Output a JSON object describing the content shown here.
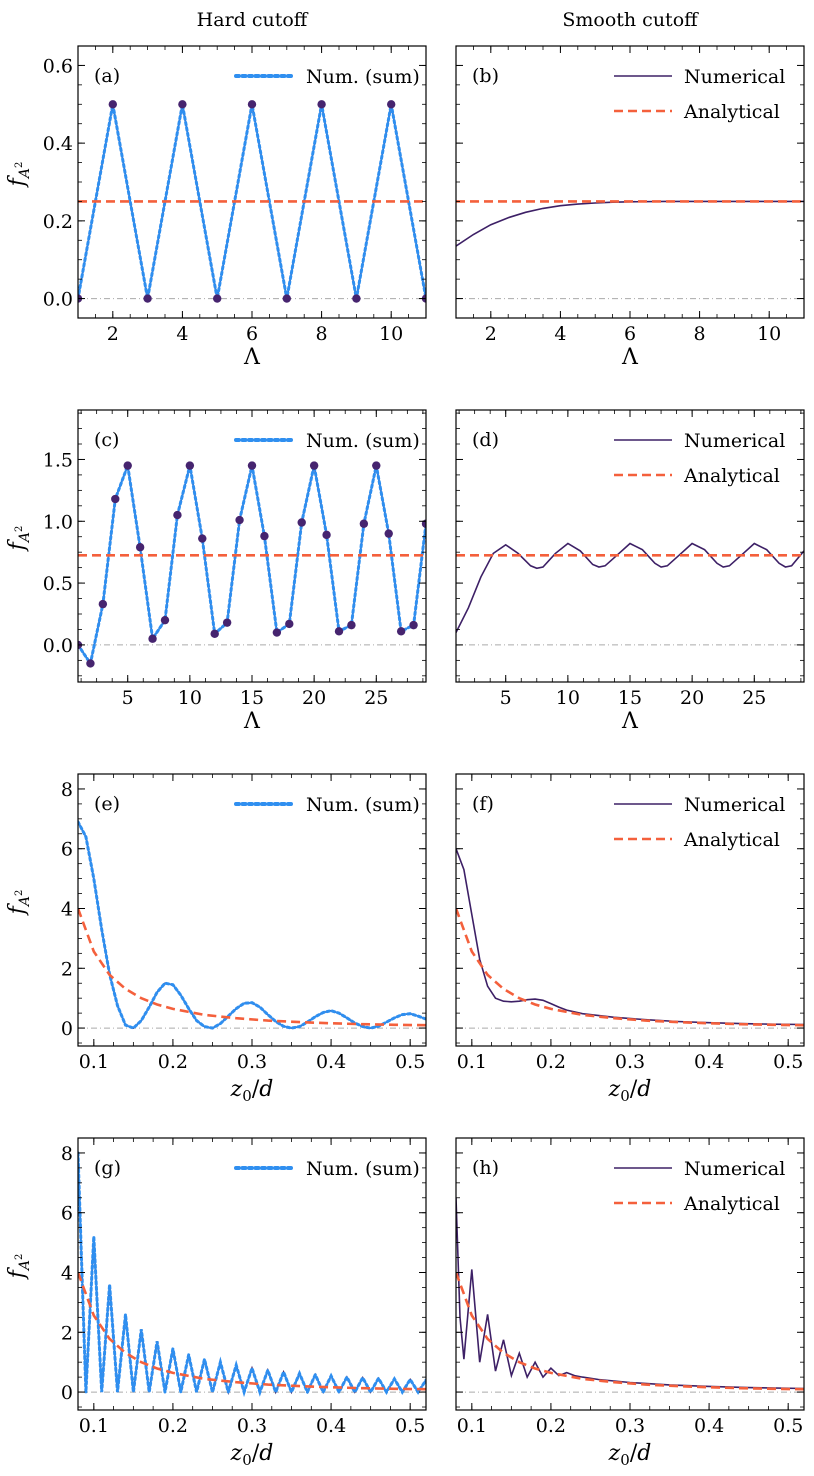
{
  "column_titles": {
    "left": "Hard cutoff",
    "right": "Smooth cutoff"
  },
  "colors": {
    "numerical": "#3d2066",
    "analytical": "#f4603c",
    "num_sum": "#2f8ff0",
    "markers": "#46246f",
    "zero_line": "#aaaaaa"
  },
  "chart_data": [
    {
      "id": "a",
      "panel_label": "(a)",
      "type": "line",
      "xlabel": "Λ",
      "ylabel": "f_{A²}",
      "xlim": [
        1,
        11
      ],
      "ylim": [
        -0.05,
        0.65
      ],
      "xticks": [
        2,
        4,
        6,
        8,
        10
      ],
      "xtick_labels": [
        "2",
        "4",
        "6",
        "8",
        "10"
      ],
      "yticks": [
        0,
        0.2,
        0.4,
        0.6
      ],
      "ytick_labels": [
        "0.0",
        "0.2",
        "0.4",
        "0.6"
      ],
      "legend": [
        "Num. (sum)"
      ],
      "legend_position": "top-right",
      "series": [
        {
          "name": "Num. (sum)",
          "style": "dotted",
          "x": [
            1,
            2,
            3,
            4,
            5,
            6,
            7,
            8,
            9,
            10,
            11
          ],
          "y": [
            0,
            0.5,
            0,
            0.5,
            0,
            0.5,
            0,
            0.5,
            0,
            0.5,
            0
          ]
        },
        {
          "style": "markers",
          "x": [
            1,
            2,
            3,
            4,
            5,
            6,
            7,
            8,
            9,
            10,
            11
          ],
          "y": [
            0,
            0.5,
            0,
            0.5,
            0,
            0.5,
            0,
            0.5,
            0,
            0.5,
            0
          ]
        },
        {
          "style": "dashed",
          "x": [
            1,
            11
          ],
          "y": [
            0.25,
            0.25
          ]
        }
      ]
    },
    {
      "id": "b",
      "panel_label": "(b)",
      "type": "line",
      "xlabel": "Λ",
      "ylabel": "",
      "xlim": [
        1,
        11
      ],
      "ylim": [
        -0.05,
        0.65
      ],
      "xticks": [
        2,
        4,
        6,
        8,
        10
      ],
      "xtick_labels": [
        "2",
        "4",
        "6",
        "8",
        "10"
      ],
      "yticks": [
        0,
        0.2,
        0.4,
        0.6
      ],
      "ytick_labels": [],
      "legend": [
        "Numerical",
        "Analytical"
      ],
      "legend_position": "top-right",
      "series": [
        {
          "name": "Numerical",
          "style": "solid",
          "x": [
            1,
            1.5,
            2,
            2.5,
            3,
            3.5,
            4,
            4.5,
            5,
            5.5,
            6,
            7,
            8,
            9,
            10,
            11
          ],
          "y": [
            0.135,
            0.165,
            0.19,
            0.208,
            0.222,
            0.232,
            0.239,
            0.243,
            0.246,
            0.248,
            0.249,
            0.25,
            0.25,
            0.25,
            0.25,
            0.25
          ]
        },
        {
          "name": "Analytical",
          "style": "dashed",
          "x": [
            1,
            11
          ],
          "y": [
            0.25,
            0.25
          ]
        }
      ]
    },
    {
      "id": "c",
      "panel_label": "(c)",
      "type": "line",
      "xlabel": "Λ",
      "ylabel": "f_{A²}",
      "xlim": [
        1,
        29
      ],
      "ylim": [
        -0.3,
        1.9
      ],
      "xticks": [
        5,
        10,
        15,
        20,
        25
      ],
      "xtick_labels": [
        "5",
        "10",
        "15",
        "20",
        "25"
      ],
      "yticks": [
        0,
        0.5,
        1.0,
        1.5
      ],
      "ytick_labels": [
        "0.0",
        "0.5",
        "1.0",
        "1.5"
      ],
      "legend": [
        "Num. (sum)"
      ],
      "legend_position": "top-right",
      "series": [
        {
          "name": "Num. (sum)",
          "style": "dotted",
          "x": [
            1,
            2,
            3,
            4,
            5,
            6,
            7,
            8,
            9,
            10,
            11,
            12,
            13,
            14,
            15,
            16,
            17,
            18,
            19,
            20,
            21,
            22,
            23,
            24,
            25,
            26,
            27,
            28,
            29
          ],
          "y": [
            0,
            -0.15,
            0.33,
            1.18,
            1.45,
            0.79,
            0.05,
            0.2,
            1.05,
            1.45,
            0.86,
            0.09,
            0.18,
            1.01,
            1.45,
            0.88,
            0.1,
            0.17,
            0.99,
            1.45,
            0.89,
            0.11,
            0.16,
            0.98,
            1.45,
            0.9,
            0.11,
            0.16,
            0.98
          ]
        },
        {
          "style": "markers",
          "x": [
            1,
            2,
            3,
            4,
            5,
            6,
            7,
            8,
            9,
            10,
            11,
            12,
            13,
            14,
            15,
            16,
            17,
            18,
            19,
            20,
            21,
            22,
            23,
            24,
            25,
            26,
            27,
            28,
            29
          ],
          "y": [
            0,
            -0.15,
            0.33,
            1.18,
            1.45,
            0.79,
            0.05,
            0.2,
            1.05,
            1.45,
            0.86,
            0.09,
            0.18,
            1.01,
            1.45,
            0.88,
            0.1,
            0.17,
            0.99,
            1.45,
            0.89,
            0.11,
            0.16,
            0.98,
            1.45,
            0.9,
            0.11,
            0.16,
            0.98
          ]
        },
        {
          "style": "dashed",
          "x": [
            1,
            29
          ],
          "y": [
            0.725,
            0.725
          ]
        }
      ]
    },
    {
      "id": "d",
      "panel_label": "(d)",
      "type": "line",
      "xlabel": "Λ",
      "ylabel": "",
      "xlim": [
        1,
        29
      ],
      "ylim": [
        -0.3,
        1.9
      ],
      "xticks": [
        5,
        10,
        15,
        20,
        25
      ],
      "xtick_labels": [
        "5",
        "10",
        "15",
        "20",
        "25"
      ],
      "yticks": [
        0,
        0.5,
        1.0,
        1.5
      ],
      "ytick_labels": [],
      "legend": [
        "Numerical",
        "Analytical"
      ],
      "legend_position": "top-right",
      "series": [
        {
          "name": "Numerical",
          "style": "solid",
          "x": [
            1,
            2,
            3,
            4,
            5,
            6,
            7,
            7.5,
            8,
            9,
            10,
            11,
            12,
            12.5,
            13,
            14,
            15,
            16,
            17,
            17.5,
            18,
            19,
            20,
            21,
            22,
            22.5,
            23,
            24,
            25,
            26,
            27,
            27.5,
            28,
            29
          ],
          "y": [
            0.1,
            0.3,
            0.55,
            0.74,
            0.81,
            0.74,
            0.64,
            0.62,
            0.63,
            0.74,
            0.82,
            0.76,
            0.65,
            0.63,
            0.64,
            0.73,
            0.82,
            0.77,
            0.66,
            0.63,
            0.64,
            0.73,
            0.82,
            0.77,
            0.66,
            0.63,
            0.64,
            0.73,
            0.82,
            0.77,
            0.66,
            0.63,
            0.64,
            0.76
          ]
        },
        {
          "name": "Analytical",
          "style": "dashed",
          "x": [
            1,
            29
          ],
          "y": [
            0.725,
            0.725
          ]
        }
      ]
    },
    {
      "id": "e",
      "panel_label": "(e)",
      "type": "line",
      "xlabel": "z₀/d",
      "ylabel": "f_{A²}",
      "xlim": [
        0.08,
        0.52
      ],
      "ylim": [
        -0.6,
        8.5
      ],
      "xticks": [
        0.1,
        0.2,
        0.3,
        0.4,
        0.5
      ],
      "xtick_labels": [
        "0.1",
        "0.2",
        "0.3",
        "0.4",
        "0.5"
      ],
      "yticks": [
        0,
        2,
        4,
        6,
        8
      ],
      "ytick_labels": [
        "0",
        "2",
        "4",
        "6",
        "8"
      ],
      "legend": [
        "Num. (sum)"
      ],
      "legend_position": "top-right",
      "series": [
        {
          "name": "Num. (sum)",
          "style": "dotted",
          "x": [
            0.08,
            0.09,
            0.1,
            0.11,
            0.12,
            0.13,
            0.14,
            0.15,
            0.16,
            0.17,
            0.18,
            0.19,
            0.2,
            0.21,
            0.22,
            0.23,
            0.24,
            0.25,
            0.26,
            0.27,
            0.28,
            0.29,
            0.3,
            0.31,
            0.32,
            0.33,
            0.34,
            0.35,
            0.36,
            0.37,
            0.38,
            0.39,
            0.4,
            0.41,
            0.42,
            0.43,
            0.44,
            0.45,
            0.46,
            0.47,
            0.48,
            0.49,
            0.5,
            0.51,
            0.52
          ],
          "y": [
            6.9,
            6.4,
            5.0,
            3.3,
            1.8,
            0.75,
            0.1,
            0.0,
            0.25,
            0.7,
            1.2,
            1.5,
            1.45,
            1.1,
            0.65,
            0.25,
            0.05,
            0.0,
            0.15,
            0.4,
            0.65,
            0.83,
            0.85,
            0.7,
            0.45,
            0.22,
            0.06,
            0.0,
            0.05,
            0.2,
            0.38,
            0.52,
            0.58,
            0.5,
            0.34,
            0.17,
            0.05,
            0.0,
            0.06,
            0.2,
            0.34,
            0.45,
            0.48,
            0.4,
            0.3
          ]
        },
        {
          "style": "dashed",
          "x": [
            0.08,
            0.1,
            0.12,
            0.14,
            0.16,
            0.18,
            0.2,
            0.24,
            0.28,
            0.32,
            0.36,
            0.4,
            0.44,
            0.48,
            0.52
          ],
          "y": [
            4.0,
            2.56,
            1.78,
            1.31,
            1.0,
            0.79,
            0.64,
            0.44,
            0.33,
            0.25,
            0.2,
            0.16,
            0.13,
            0.11,
            0.095
          ]
        }
      ]
    },
    {
      "id": "f",
      "panel_label": "(f)",
      "type": "line",
      "xlabel": "z₀/d",
      "ylabel": "",
      "xlim": [
        0.08,
        0.52
      ],
      "ylim": [
        -0.6,
        8.5
      ],
      "xticks": [
        0.1,
        0.2,
        0.3,
        0.4,
        0.5
      ],
      "xtick_labels": [
        "0.1",
        "0.2",
        "0.3",
        "0.4",
        "0.5"
      ],
      "yticks": [
        0,
        2,
        4,
        6,
        8
      ],
      "ytick_labels": [],
      "legend": [
        "Numerical",
        "Analytical"
      ],
      "legend_position": "top-right",
      "series": [
        {
          "name": "Numerical",
          "style": "solid",
          "x": [
            0.08,
            0.09,
            0.1,
            0.11,
            0.12,
            0.13,
            0.14,
            0.15,
            0.16,
            0.17,
            0.18,
            0.19,
            0.2,
            0.21,
            0.22,
            0.24,
            0.28,
            0.32,
            0.36,
            0.4,
            0.44,
            0.48,
            0.52
          ],
          "y": [
            6.0,
            5.3,
            3.8,
            2.3,
            1.4,
            1.0,
            0.9,
            0.88,
            0.9,
            0.95,
            0.97,
            0.93,
            0.82,
            0.7,
            0.6,
            0.48,
            0.36,
            0.28,
            0.22,
            0.18,
            0.15,
            0.13,
            0.12
          ]
        },
        {
          "name": "Analytical",
          "style": "dashed",
          "x": [
            0.08,
            0.1,
            0.12,
            0.14,
            0.16,
            0.18,
            0.2,
            0.24,
            0.28,
            0.32,
            0.36,
            0.4,
            0.44,
            0.48,
            0.52
          ],
          "y": [
            4.0,
            2.56,
            1.78,
            1.31,
            1.0,
            0.79,
            0.64,
            0.44,
            0.33,
            0.25,
            0.2,
            0.16,
            0.13,
            0.11,
            0.095
          ]
        }
      ]
    },
    {
      "id": "g",
      "panel_label": "(g)",
      "type": "line",
      "xlabel": "z₀/d",
      "ylabel": "f_{A²}",
      "xlim": [
        0.08,
        0.52
      ],
      "ylim": [
        -0.6,
        8.5
      ],
      "xticks": [
        0.1,
        0.2,
        0.3,
        0.4,
        0.5
      ],
      "xtick_labels": [
        "0.1",
        "0.2",
        "0.3",
        "0.4",
        "0.5"
      ],
      "yticks": [
        0,
        2,
        4,
        6,
        8
      ],
      "ytick_labels": [
        "0",
        "2",
        "4",
        "6",
        "8"
      ],
      "legend": [
        "Num. (sum)"
      ],
      "legend_position": "top-right",
      "series": [
        {
          "name": "Num. (sum)",
          "style": "dotted",
          "x": [
            0.08,
            0.09,
            0.1,
            0.11,
            0.12,
            0.13,
            0.14,
            0.15,
            0.16,
            0.17,
            0.18,
            0.19,
            0.2,
            0.21,
            0.22,
            0.23,
            0.24,
            0.25,
            0.26,
            0.27,
            0.28,
            0.29,
            0.3,
            0.31,
            0.32,
            0.33,
            0.34,
            0.35,
            0.36,
            0.37,
            0.38,
            0.39,
            0.4,
            0.41,
            0.42,
            0.43,
            0.44,
            0.45,
            0.46,
            0.47,
            0.48,
            0.49,
            0.5,
            0.51,
            0.52
          ],
          "y": [
            8.0,
            0.0,
            5.2,
            0.0,
            3.6,
            0.0,
            2.6,
            0.0,
            2.1,
            0.0,
            1.7,
            0.0,
            1.45,
            0.0,
            1.25,
            0.0,
            1.1,
            0.0,
            1.0,
            0.0,
            0.9,
            0.0,
            0.8,
            0.0,
            0.73,
            0.0,
            0.67,
            0.0,
            0.62,
            0.0,
            0.58,
            0.0,
            0.54,
            0.0,
            0.5,
            0.0,
            0.48,
            0.0,
            0.46,
            0.0,
            0.44,
            0.0,
            0.42,
            0.0,
            0.4
          ]
        },
        {
          "style": "dashed",
          "x": [
            0.08,
            0.1,
            0.12,
            0.14,
            0.16,
            0.18,
            0.2,
            0.24,
            0.28,
            0.32,
            0.36,
            0.4,
            0.44,
            0.48,
            0.52
          ],
          "y": [
            4.0,
            2.56,
            1.78,
            1.31,
            1.0,
            0.79,
            0.64,
            0.44,
            0.33,
            0.25,
            0.2,
            0.16,
            0.13,
            0.11,
            0.095
          ]
        }
      ]
    },
    {
      "id": "h",
      "panel_label": "(h)",
      "type": "line",
      "xlabel": "z₀/d",
      "ylabel": "",
      "xlim": [
        0.08,
        0.52
      ],
      "ylim": [
        -0.6,
        8.5
      ],
      "xticks": [
        0.1,
        0.2,
        0.3,
        0.4,
        0.5
      ],
      "xtick_labels": [
        "0.1",
        "0.2",
        "0.3",
        "0.4",
        "0.5"
      ],
      "yticks": [
        0,
        2,
        4,
        6,
        8
      ],
      "ytick_labels": [],
      "legend": [
        "Numerical",
        "Analytical"
      ],
      "legend_position": "top-right",
      "series": [
        {
          "name": "Numerical",
          "style": "solid",
          "x": [
            0.08,
            0.085,
            0.09,
            0.1,
            0.11,
            0.12,
            0.13,
            0.14,
            0.15,
            0.16,
            0.17,
            0.18,
            0.19,
            0.2,
            0.21,
            0.22,
            0.23,
            0.24,
            0.26,
            0.3,
            0.35,
            0.4,
            0.45,
            0.52
          ],
          "y": [
            6.5,
            2.5,
            1.1,
            4.1,
            1.0,
            2.6,
            0.7,
            1.75,
            0.55,
            1.3,
            0.5,
            1.0,
            0.5,
            0.8,
            0.55,
            0.65,
            0.55,
            0.5,
            0.42,
            0.32,
            0.24,
            0.19,
            0.15,
            0.12
          ]
        },
        {
          "name": "Analytical",
          "style": "dashed",
          "x": [
            0.08,
            0.1,
            0.12,
            0.14,
            0.16,
            0.18,
            0.2,
            0.24,
            0.28,
            0.32,
            0.36,
            0.4,
            0.44,
            0.48,
            0.52
          ],
          "y": [
            4.0,
            2.56,
            1.78,
            1.31,
            1.0,
            0.79,
            0.64,
            0.44,
            0.33,
            0.25,
            0.2,
            0.16,
            0.13,
            0.11,
            0.095
          ]
        }
      ]
    }
  ]
}
